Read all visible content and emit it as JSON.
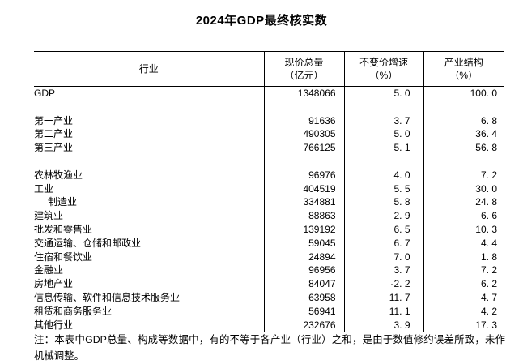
{
  "title": "2024年GDP最终核实数",
  "table": {
    "columns": [
      {
        "label": "行业",
        "unit": ""
      },
      {
        "label": "现价总量",
        "unit": "（亿元）"
      },
      {
        "label": "不变价增速",
        "unit": "（%）"
      },
      {
        "label": "产业结构",
        "unit": "（%）"
      }
    ],
    "rows": [
      {
        "industry": "GDP",
        "current_total": "1348066",
        "growth": "5. 0",
        "structure": "100. 0",
        "indent": false,
        "blank": false
      },
      {
        "industry": "",
        "current_total": "",
        "growth": "",
        "structure": "",
        "indent": false,
        "blank": true
      },
      {
        "industry": "第一产业",
        "current_total": "91636",
        "growth": "3. 7",
        "structure": "6. 8",
        "indent": false,
        "blank": false
      },
      {
        "industry": "第二产业",
        "current_total": "490305",
        "growth": "5. 0",
        "structure": "36. 4",
        "indent": false,
        "blank": false
      },
      {
        "industry": "第三产业",
        "current_total": "766125",
        "growth": "5. 1",
        "structure": "56. 8",
        "indent": false,
        "blank": false
      },
      {
        "industry": "",
        "current_total": "",
        "growth": "",
        "structure": "",
        "indent": false,
        "blank": true
      },
      {
        "industry": "农林牧渔业",
        "current_total": "96976",
        "growth": "4. 0",
        "structure": "7. 2",
        "indent": false,
        "blank": false
      },
      {
        "industry": "工业",
        "current_total": "404519",
        "growth": "5. 5",
        "structure": "30. 0",
        "indent": false,
        "blank": false
      },
      {
        "industry": "制造业",
        "current_total": "334881",
        "growth": "5. 8",
        "structure": "24. 8",
        "indent": true,
        "blank": false
      },
      {
        "industry": "建筑业",
        "current_total": "88863",
        "growth": "2. 9",
        "structure": "6. 6",
        "indent": false,
        "blank": false
      },
      {
        "industry": "批发和零售业",
        "current_total": "139192",
        "growth": "6. 5",
        "structure": "10. 3",
        "indent": false,
        "blank": false
      },
      {
        "industry": "交通运输、仓储和邮政业",
        "current_total": "59045",
        "growth": "6. 7",
        "structure": "4. 4",
        "indent": false,
        "blank": false
      },
      {
        "industry": "住宿和餐饮业",
        "current_total": "24894",
        "growth": "7. 0",
        "structure": "1. 8",
        "indent": false,
        "blank": false
      },
      {
        "industry": "金融业",
        "current_total": "96956",
        "growth": "3. 7",
        "structure": "7. 2",
        "indent": false,
        "blank": false
      },
      {
        "industry": "房地产业",
        "current_total": "84047",
        "growth": "-2. 2",
        "structure": "6. 2",
        "indent": false,
        "blank": false
      },
      {
        "industry": "信息传输、软件和信息技术服务业",
        "current_total": "63958",
        "growth": "11. 7",
        "structure": "4. 7",
        "indent": false,
        "blank": false
      },
      {
        "industry": "租赁和商务服务业",
        "current_total": "56941",
        "growth": "11. 1",
        "structure": "4. 2",
        "indent": false,
        "blank": false
      },
      {
        "industry": "其他行业",
        "current_total": "232676",
        "growth": "3. 9",
        "structure": "17. 3",
        "indent": false,
        "blank": false
      }
    ]
  },
  "note": "注：本表中GDP总量、构成等数据中，有的不等于各产业（行业）之和，是由于数值修约误差所致，未作机械调整。"
}
